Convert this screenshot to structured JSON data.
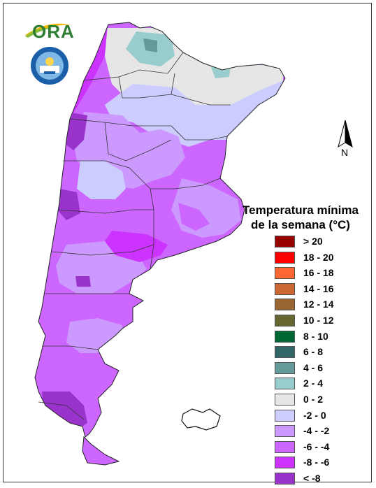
{
  "legend": {
    "title_line1": "Temperatura mínima",
    "title_line2": "de la semana (°C)",
    "items": [
      {
        "label": "> 20",
        "color": "#990000"
      },
      {
        "label": "18 - 20",
        "color": "#ff0000"
      },
      {
        "label": "16 - 18",
        "color": "#ff6633"
      },
      {
        "label": "14 - 16",
        "color": "#cc6633"
      },
      {
        "label": "12 - 14",
        "color": "#996633"
      },
      {
        "label": "10 - 12",
        "color": "#666633"
      },
      {
        "label": "8 - 10",
        "color": "#006633"
      },
      {
        "label": "6 - 8",
        "color": "#336666"
      },
      {
        "label": "4 - 6",
        "color": "#669999"
      },
      {
        "label": "2 - 4",
        "color": "#99cccc"
      },
      {
        "label": "0 - 2",
        "color": "#e6e6e6"
      },
      {
        "label": "-2 - 0",
        "color": "#ccccff"
      },
      {
        "label": "-4 - -2",
        "color": "#cc99ff"
      },
      {
        "label": "-6 - -4",
        "color": "#cc66ff"
      },
      {
        "label": "-8 - -6",
        "color": "#cc33ff"
      },
      {
        "label": "< -8",
        "color": "#9933cc"
      }
    ]
  },
  "logos": {
    "ora": "ORA",
    "smn_icon": "smn-seal-icon"
  },
  "north_arrow": "N"
}
